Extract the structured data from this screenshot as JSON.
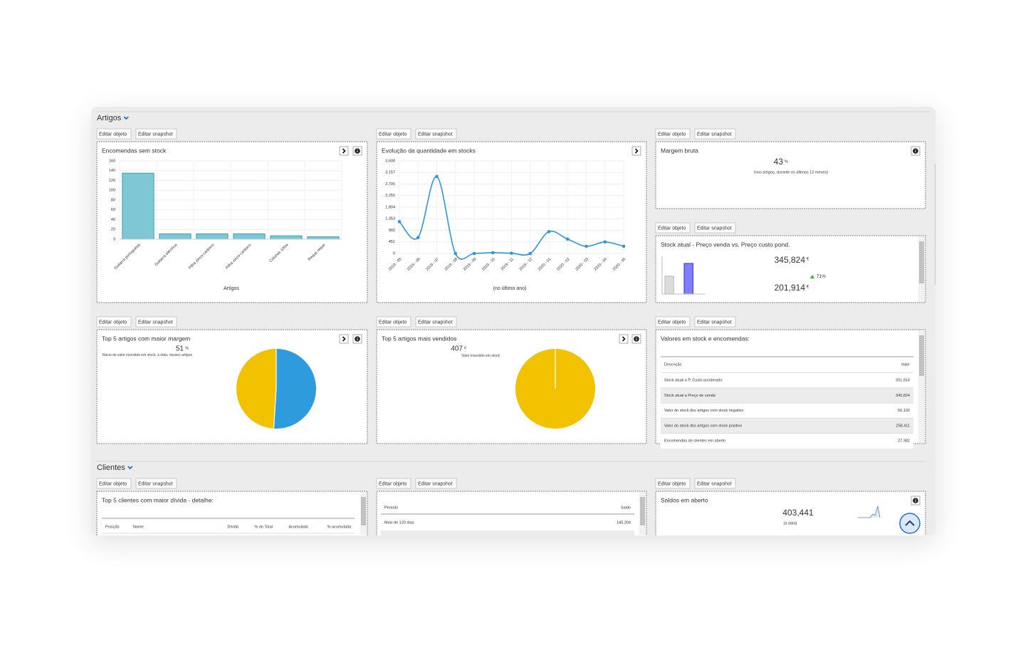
{
  "sections": [
    {
      "title": "Artigos"
    },
    {
      "title": "Clientes"
    }
  ],
  "buttons": {
    "edit_object": "Editar objeto",
    "edit_snapshot": "Editar snapshot"
  },
  "chart_data": [
    {
      "type": "bar",
      "title": "Encomendas sem stock",
      "categories": [
        "Guitarra portuguesa",
        "Guitarra eléctrica",
        "Pilha zinco-carbono",
        "Pilha zinco-carbono",
        "Colunas 100w",
        "Reque reque"
      ],
      "values": [
        135,
        11,
        11,
        11,
        7,
        5
      ],
      "color": "#7fc7d5",
      "ylim": [
        0,
        160
      ],
      "yticks": [
        0,
        20,
        40,
        60,
        80,
        100,
        120,
        140,
        160
      ],
      "x_label": "Artigos",
      "grid": true
    },
    {
      "type": "line",
      "title": "Evolução da quantidade em stocks",
      "categories": [
        "2019 - 05",
        "2019 - 06",
        "2019 - 07",
        "2019 - 08",
        "2019 - 09",
        "2019 - 10",
        "2019 - 11",
        "2019 - 12",
        "2020 - 01",
        "2020 - 02",
        "2020 - 03",
        "2020 - 04",
        "2020 - 05"
      ],
      "values": [
        1240,
        620,
        3000,
        0,
        0,
        30,
        10,
        0,
        850,
        560,
        280,
        450,
        280
      ],
      "color": "#2e96db",
      "ylim": [
        0,
        3608
      ],
      "yticks": [
        0,
        451,
        902,
        {
          "value": 1353,
          "label": "1,353"
        },
        {
          "value": 1804,
          "label": "1,804"
        },
        {
          "value": 2255,
          "label": "2,255"
        },
        {
          "value": 2706,
          "label": "2,706"
        },
        {
          "value": 3157,
          "label": "3,157"
        },
        {
          "value": 3608,
          "label": "3,608"
        }
      ],
      "x_label": "(no último ano)",
      "grid": true
    },
    {
      "type": "bar",
      "title": "Stock atual - Preço venda vs. Preço custo pond.",
      "values": [
        201914,
        345824
      ],
      "value_labels": [
        "201,914",
        "345,824"
      ],
      "unit": "€",
      "colors": [
        "#dcdcdc",
        "#8080ff"
      ],
      "change": "71%"
    },
    {
      "type": "pie",
      "title": "Top 5 artigos com maior margem",
      "kpi": "51",
      "kpi_unit": "%",
      "subtitle": "Rácio do valor investido em stock, à data, nesses artigos",
      "values": [
        51,
        49
      ],
      "colors": [
        "#2e9bdc",
        "#f2c200"
      ]
    },
    {
      "type": "pie",
      "title": "Top 5 artigos mais vendidos",
      "kpi": "407",
      "kpi_unit": "€",
      "subtitle": "Valor investido em stock",
      "values": [
        100
      ],
      "colors": [
        "#f2c200"
      ]
    }
  ],
  "kpis": [
    {
      "title": "Margem bruta",
      "value": "43",
      "unit": "%",
      "note": "(nos artigos, durante os últimos 12 meses)"
    },
    {
      "title": "Saldos em aberto",
      "value": "403,441",
      "note": "(à data)"
    }
  ],
  "tables": [
    {
      "title": "Valores em stock e encomendas:",
      "columns": [
        "Descrição",
        "Valor"
      ],
      "rows": [
        [
          "Stock atual a P. Custo ponderado",
          "201,914"
        ],
        [
          "Stock atual a Preço de venda",
          "345,824"
        ],
        [
          "Valor do stock dos artigos com stock negativo",
          "56,192"
        ],
        [
          "Valor do stock dos artigos com stock positivo",
          "258,411"
        ],
        [
          "Encomendas de clientes em aberto",
          "27,382"
        ]
      ]
    },
    {
      "title": "Top 5 clientes com maior dívida - detalhe:",
      "columns": [
        "Posição",
        "Nome",
        "Dívida",
        "% do Total",
        "Acumulado",
        "% acumulada"
      ]
    },
    {
      "columns": [
        "Período",
        "Saldo"
      ],
      "rows": [
        [
          "Mais de 120 dias",
          "145,204"
        ]
      ]
    }
  ]
}
